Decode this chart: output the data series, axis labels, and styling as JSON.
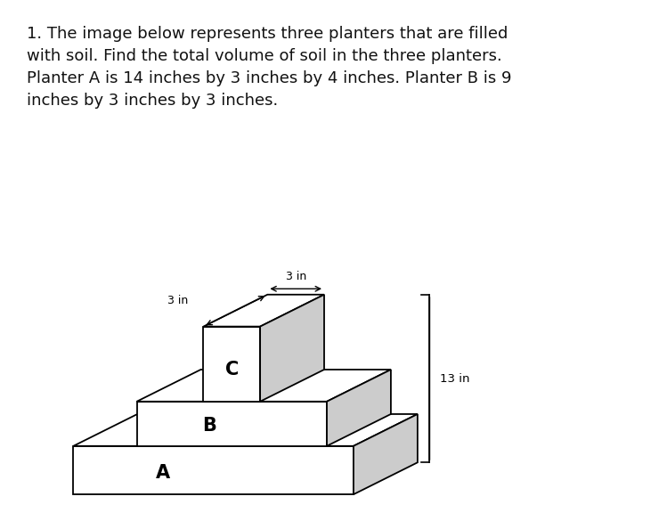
{
  "title_text": "1. The image below represents three planters that are filled\nwith soil. Find the total volume of soil in the three planters.\nPlanter A is 14 inches by 3 inches by 4 inches. Planter B is 9\ninches by 3 inches by 3 inches.",
  "title_fontsize": 13.0,
  "bg_color": "#ffffff",
  "box_face_color": "#ffffff",
  "box_edge_color": "#000000",
  "side_face_color": "#cccccc",
  "label_A": "A",
  "label_B": "B",
  "label_C": "C",
  "dim_3in_diag": "3 in",
  "dim_3in_horiz": "3 in",
  "dim_13in": "13 in",
  "lw": 1.3
}
